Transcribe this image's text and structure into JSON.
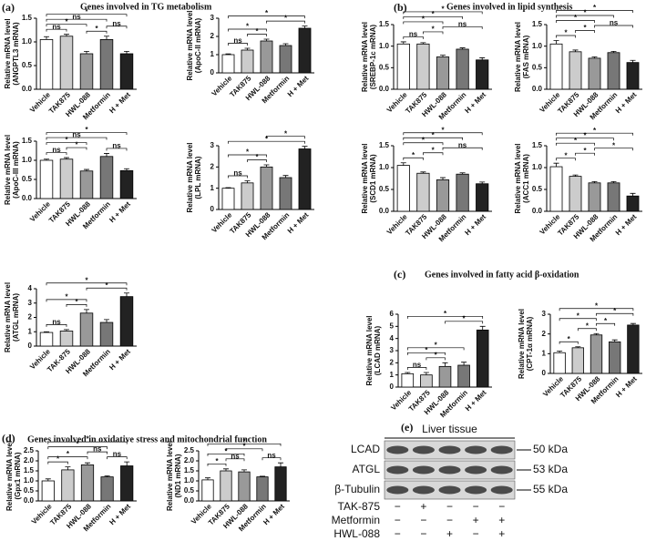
{
  "panels": [
    {
      "label": "(a)",
      "title": "Genes involved in TG metabolism"
    },
    {
      "label": "(b)",
      "title": "Genes involved in lipid synthesis"
    },
    {
      "label": "(c)",
      "title": "Genes involved in fatty acid β-oxidation"
    },
    {
      "label": "(d)",
      "title": "Genes involved in oxidative stress and mitochondrial function"
    },
    {
      "label": "(e)"
    }
  ],
  "chart_data": [
    {
      "type": "bar",
      "ylabel": [
        "Relative mRNA level",
        "(ANGPTL3 mRNA)"
      ],
      "categories": [
        "Vehicle",
        "TAK875",
        "HWL-088",
        "Metformin",
        "H + Met"
      ],
      "values": [
        1.05,
        1.12,
        0.75,
        1.05,
        0.75
      ],
      "errors": [
        0.06,
        0.04,
        0.05,
        0.07,
        0.05
      ],
      "colors": [
        "#ffffff",
        "#cccccc",
        "#999999",
        "#777777",
        "#222222"
      ],
      "ylim": [
        0,
        1.5
      ],
      "yticks": [
        {
          "value": 0,
          "label": "0.0"
        },
        {
          "value": 0.5,
          "label": "0.5"
        },
        {
          "value": 1,
          "label": "1.0"
        },
        {
          "value": 1.5,
          "label": "1.5"
        }
      ],
      "brackets": [
        {
          "from": 0,
          "to": 1,
          "label": "ns"
        },
        {
          "from": 2,
          "to": 3,
          "label": "*"
        },
        {
          "from": 3,
          "to": 4,
          "label": "ns"
        },
        {
          "from": 0,
          "to": 2,
          "label": "*"
        },
        {
          "from": 0,
          "to": 3,
          "label": "ns"
        },
        {
          "from": 0,
          "to": 4,
          "label": "*"
        }
      ]
    },
    {
      "type": "bar",
      "ylabel": [
        "Relative mRNA level",
        "(ApoC-II mRNA)"
      ],
      "categories": [
        "Vehicle",
        "TAK875",
        "HWL-088",
        "Metformin",
        "H + Met"
      ],
      "values": [
        1.0,
        1.25,
        1.75,
        1.5,
        2.45
      ],
      "errors": [
        0.04,
        0.1,
        0.1,
        0.1,
        0.12
      ],
      "colors": [
        "#ffffff",
        "#cccccc",
        "#999999",
        "#777777",
        "#222222"
      ],
      "ylim": [
        0,
        3
      ],
      "yticks": [
        0,
        1,
        2,
        3
      ],
      "brackets": [
        {
          "from": 0,
          "to": 1,
          "label": "ns"
        },
        {
          "from": 1,
          "to": 2,
          "label": "*"
        },
        {
          "from": 0,
          "to": 2,
          "label": "*"
        },
        {
          "from": 2,
          "to": 4,
          "label": "*"
        },
        {
          "from": 0,
          "to": 4,
          "label": "*"
        }
      ]
    },
    {
      "type": "bar",
      "ylabel": [
        "Relative mRNA level",
        "(ApoC-III mRNA)"
      ],
      "categories": [
        "Vehicle",
        "TAK875",
        "HWL-088",
        "Metformin",
        "H + Met"
      ],
      "values": [
        1.0,
        1.03,
        0.72,
        1.1,
        0.73
      ],
      "errors": [
        0.03,
        0.04,
        0.04,
        0.08,
        0.05
      ],
      "colors": [
        "#ffffff",
        "#cccccc",
        "#999999",
        "#777777",
        "#222222"
      ],
      "ylim": [
        0,
        1.5
      ],
      "yticks": [
        {
          "value": 0,
          "label": "0.0"
        },
        {
          "value": 0.5,
          "label": "0.5"
        },
        {
          "value": 1,
          "label": "1.0"
        },
        {
          "value": 1.5,
          "label": "1.5"
        }
      ],
      "brackets": [
        {
          "from": 0,
          "to": 1,
          "label": "ns"
        },
        {
          "from": 1,
          "to": 2,
          "label": "*"
        },
        {
          "from": 3,
          "to": 4,
          "label": "ns"
        },
        {
          "from": 0,
          "to": 2,
          "label": "*"
        },
        {
          "from": 0,
          "to": 3,
          "label": "ns"
        },
        {
          "from": 0,
          "to": 4,
          "label": "*"
        }
      ]
    },
    {
      "type": "bar",
      "ylabel": [
        "Relative mRNA level",
        "(LPL mRNA)"
      ],
      "categories": [
        "Vehicle",
        "TAK875",
        "HWL-088",
        "Metformin",
        "H + Met"
      ],
      "values": [
        1.0,
        1.25,
        2.0,
        1.5,
        2.85
      ],
      "errors": [
        0.03,
        0.1,
        0.1,
        0.1,
        0.12
      ],
      "colors": [
        "#ffffff",
        "#cccccc",
        "#999999",
        "#777777",
        "#222222"
      ],
      "ylim": [
        0,
        3
      ],
      "yticks": [
        0,
        1,
        2,
        3
      ],
      "brackets": [
        {
          "from": 0,
          "to": 1,
          "label": "ns"
        },
        {
          "from": 1,
          "to": 2,
          "label": "*"
        },
        {
          "from": 0,
          "to": 2,
          "label": "*"
        },
        {
          "from": 0,
          "to": 4,
          "label": "*"
        },
        {
          "from": 2,
          "to": 4,
          "label": "*"
        }
      ]
    },
    {
      "type": "bar",
      "ylabel": [
        "Relative mRNA level",
        "(ATGL mRNA)"
      ],
      "categories": [
        "Vehicle",
        "TAK-875",
        "HWL-088",
        "Metformin",
        "H + Met"
      ],
      "values": [
        0.95,
        1.05,
        2.3,
        1.65,
        3.45
      ],
      "errors": [
        0.05,
        0.1,
        0.25,
        0.2,
        0.25
      ],
      "colors": [
        "#ffffff",
        "#cccccc",
        "#999999",
        "#777777",
        "#222222"
      ],
      "ylim": [
        0,
        4
      ],
      "yticks": [
        0,
        1,
        2,
        3,
        4
      ],
      "brackets": [
        {
          "from": 0,
          "to": 1,
          "label": "ns"
        },
        {
          "from": 1,
          "to": 2,
          "label": "*"
        },
        {
          "from": 0,
          "to": 2,
          "label": "*"
        },
        {
          "from": 2,
          "to": 4,
          "label": "*"
        },
        {
          "from": 0,
          "to": 4,
          "label": "*"
        }
      ]
    },
    {
      "type": "bar",
      "ylabel": [
        "Relative mRNA level",
        "(SREBP-1c mRNA)"
      ],
      "categories": [
        "Vehicle",
        "TAK875",
        "HWL-088",
        "Metformin",
        "H + Met"
      ],
      "values": [
        1.05,
        1.05,
        0.75,
        0.93,
        0.68
      ],
      "errors": [
        0.05,
        0.03,
        0.04,
        0.03,
        0.05
      ],
      "colors": [
        "#ffffff",
        "#cccccc",
        "#999999",
        "#777777",
        "#222222"
      ],
      "ylim": [
        0,
        1.5
      ],
      "yticks": [
        {
          "value": 0,
          "label": "0.0"
        },
        {
          "value": 0.5,
          "label": "0.5"
        },
        {
          "value": 1,
          "label": "1.0"
        },
        {
          "value": 1.5,
          "label": "1.5"
        }
      ],
      "brackets": [
        {
          "from": 0,
          "to": 1,
          "label": "ns"
        },
        {
          "from": 1,
          "to": 2,
          "label": "*"
        },
        {
          "from": 2,
          "to": 4,
          "label": "ns"
        },
        {
          "from": 0,
          "to": 2,
          "label": "*"
        },
        {
          "from": 0,
          "to": 3,
          "label": "*"
        },
        {
          "from": 0,
          "to": 4,
          "label": "*"
        }
      ]
    },
    {
      "type": "bar",
      "ylabel": [
        "Relative mRNA level",
        "(FAS mRNA)"
      ],
      "categories": [
        "Vehicle",
        "TAK875",
        "HWL-088",
        "Metformin",
        "H + Met"
      ],
      "values": [
        1.05,
        0.87,
        0.72,
        0.85,
        0.62
      ],
      "errors": [
        0.08,
        0.04,
        0.03,
        0.03,
        0.05
      ],
      "colors": [
        "#ffffff",
        "#cccccc",
        "#999999",
        "#777777",
        "#222222"
      ],
      "ylim": [
        0,
        1.5
      ],
      "yticks": [
        {
          "value": 0,
          "label": "0.0"
        },
        {
          "value": 0.5,
          "label": "0.5"
        },
        {
          "value": 1,
          "label": "1.0"
        },
        {
          "value": 1.5,
          "label": "1.5"
        }
      ],
      "brackets": [
        {
          "from": 0,
          "to": 1,
          "label": "*"
        },
        {
          "from": 1,
          "to": 2,
          "label": "*"
        },
        {
          "from": 2,
          "to": 4,
          "label": "ns"
        },
        {
          "from": 0,
          "to": 2,
          "label": "*"
        },
        {
          "from": 0,
          "to": 3,
          "label": "*"
        },
        {
          "from": 0,
          "to": 4,
          "label": "*"
        }
      ]
    },
    {
      "type": "bar",
      "ylabel": [
        "Relative mRNA level",
        "(SCD1 mRNA)"
      ],
      "categories": [
        "Vehicle",
        "TAK875",
        "HWL-088",
        "Metformin",
        "H + Met"
      ],
      "values": [
        1.05,
        0.87,
        0.72,
        0.85,
        0.63
      ],
      "errors": [
        0.06,
        0.03,
        0.05,
        0.03,
        0.04
      ],
      "colors": [
        "#ffffff",
        "#cccccc",
        "#999999",
        "#777777",
        "#222222"
      ],
      "ylim": [
        0,
        1.5
      ],
      "yticks": [
        {
          "value": 0,
          "label": "0.0"
        },
        {
          "value": 0.5,
          "label": "0.5"
        },
        {
          "value": 1,
          "label": "1.0"
        },
        {
          "value": 1.5,
          "label": "1.5"
        }
      ],
      "brackets": [
        {
          "from": 0,
          "to": 1,
          "label": "*"
        },
        {
          "from": 1,
          "to": 2,
          "label": "*"
        },
        {
          "from": 2,
          "to": 4,
          "label": "ns"
        },
        {
          "from": 0,
          "to": 2,
          "label": "*"
        },
        {
          "from": 0,
          "to": 3,
          "label": "*"
        },
        {
          "from": 0,
          "to": 4,
          "label": "*"
        }
      ]
    },
    {
      "type": "bar",
      "ylabel": [
        "Relative mRNA level",
        "(ACC1 mRNA)"
      ],
      "categories": [
        "Vehicle",
        "TAK875",
        "HWL-088",
        "Metformin",
        "H + Met"
      ],
      "values": [
        1.02,
        0.8,
        0.65,
        0.65,
        0.35
      ],
      "errors": [
        0.08,
        0.03,
        0.03,
        0.03,
        0.06
      ],
      "colors": [
        "#ffffff",
        "#cccccc",
        "#999999",
        "#777777",
        "#222222"
      ],
      "ylim": [
        0,
        1.5
      ],
      "yticks": [
        {
          "value": 0,
          "label": "0.0"
        },
        {
          "value": 0.5,
          "label": "0.5"
        },
        {
          "value": 1,
          "label": "1.0"
        },
        {
          "value": 1.5,
          "label": "1.5"
        }
      ],
      "brackets": [
        {
          "from": 0,
          "to": 1,
          "label": "*"
        },
        {
          "from": 1,
          "to": 2,
          "label": "*"
        },
        {
          "from": 2,
          "to": 4,
          "label": "*"
        },
        {
          "from": 0,
          "to": 2,
          "label": "*"
        },
        {
          "from": 0,
          "to": 3,
          "label": "*"
        },
        {
          "from": 0,
          "to": 4,
          "label": "*"
        }
      ]
    },
    {
      "type": "bar",
      "ylabel": [
        "Relative mRNA level",
        "(LCAD mRNA)"
      ],
      "categories": [
        "Vehicle",
        "TAK875",
        "HWL-088",
        "Metformin",
        "H + Met"
      ],
      "values": [
        1.1,
        1.0,
        1.7,
        1.8,
        4.7
      ],
      "errors": [
        0.1,
        0.2,
        0.3,
        0.25,
        0.3
      ],
      "colors": [
        "#ffffff",
        "#cccccc",
        "#999999",
        "#777777",
        "#222222"
      ],
      "ylim": [
        0,
        6
      ],
      "yticks": [
        0,
        1,
        2,
        3,
        4,
        5,
        6
      ],
      "brackets": [
        {
          "from": 0,
          "to": 1,
          "label": "ns"
        },
        {
          "from": 1,
          "to": 2,
          "label": "*"
        },
        {
          "from": 0,
          "to": 2,
          "label": "*"
        },
        {
          "from": 0,
          "to": 3,
          "label": "*"
        },
        {
          "from": 2,
          "to": 4,
          "label": "*"
        },
        {
          "from": 0,
          "to": 4,
          "label": "*"
        }
      ]
    },
    {
      "type": "bar",
      "ylabel": [
        "Relative mRNA level",
        "(CPT-1α mRNA)"
      ],
      "categories": [
        "Vehicle",
        "TAK875",
        "HWL-088",
        "Metformin",
        "H + Met"
      ],
      "values": [
        1.05,
        1.3,
        1.95,
        1.6,
        2.45
      ],
      "errors": [
        0.08,
        0.05,
        0.07,
        0.1,
        0.08
      ],
      "colors": [
        "#ffffff",
        "#cccccc",
        "#999999",
        "#777777",
        "#222222"
      ],
      "ylim": [
        0,
        3
      ],
      "yticks": [
        0,
        1,
        2,
        3
      ],
      "brackets": [
        {
          "from": 0,
          "to": 1,
          "label": "*"
        },
        {
          "from": 1,
          "to": 2,
          "label": "*"
        },
        {
          "from": 2,
          "to": 3,
          "label": "*"
        },
        {
          "from": 0,
          "to": 2,
          "label": "*"
        },
        {
          "from": 2,
          "to": 4,
          "label": "*"
        },
        {
          "from": 0,
          "to": 4,
          "label": "*"
        }
      ]
    },
    {
      "type": "bar",
      "ylabel": [
        "Relative mRNA level",
        "(Gpx1 mRNA)"
      ],
      "categories": [
        "Vehicle",
        "TAK875",
        "HWL-088",
        "Metformin",
        "H + Met"
      ],
      "values": [
        1.0,
        1.55,
        1.8,
        1.2,
        1.75
      ],
      "errors": [
        0.1,
        0.15,
        0.1,
        0.05,
        0.2
      ],
      "colors": [
        "#ffffff",
        "#cccccc",
        "#999999",
        "#777777",
        "#222222"
      ],
      "ylim": [
        0,
        2.5
      ],
      "yticks": [
        {
          "value": 0,
          "label": "0.0"
        },
        {
          "value": 0.5,
          "label": "0.5"
        },
        {
          "value": 1,
          "label": "1.0"
        },
        {
          "value": 1.5,
          "label": "1.5"
        },
        {
          "value": 2,
          "label": "2.0"
        },
        {
          "value": 2.5,
          "label": "2.5"
        }
      ],
      "brackets": [
        {
          "from": 0,
          "to": 1,
          "label": "*"
        },
        {
          "from": 3,
          "to": 4,
          "label": "ns"
        },
        {
          "from": 0,
          "to": 2,
          "label": "*"
        },
        {
          "from": 2,
          "to": 3,
          "label": "ns"
        },
        {
          "from": 0,
          "to": 3,
          "label": "*"
        },
        {
          "from": 0,
          "to": 4,
          "label": "*"
        }
      ]
    },
    {
      "type": "bar",
      "ylabel": [
        "Relative mRNA level",
        "(ND1 mRNA)"
      ],
      "categories": [
        "Vehicle",
        "TAK875",
        "HWL-088",
        "Metformin",
        "H + Met"
      ],
      "values": [
        1.05,
        1.5,
        1.45,
        1.2,
        1.7
      ],
      "errors": [
        0.1,
        0.1,
        0.1,
        0.03,
        0.2
      ],
      "colors": [
        "#ffffff",
        "#cccccc",
        "#999999",
        "#777777",
        "#222222"
      ],
      "ylim": [
        0,
        2.5
      ],
      "yticks": [
        {
          "value": 0,
          "label": "0.0"
        },
        {
          "value": 0.5,
          "label": "0.5"
        },
        {
          "value": 1,
          "label": "1.0"
        },
        {
          "value": 1.5,
          "label": "1.5"
        },
        {
          "value": 2,
          "label": "2.0"
        },
        {
          "value": 2.5,
          "label": "2.5"
        }
      ],
      "brackets": [
        {
          "from": 0,
          "to": 1,
          "label": "*"
        },
        {
          "from": 1,
          "to": 2,
          "label": "ns"
        },
        {
          "from": 3,
          "to": 4,
          "label": "ns"
        },
        {
          "from": 0,
          "to": 2,
          "label": "*"
        },
        {
          "from": 1,
          "to": 3,
          "label": "*"
        },
        {
          "from": 0,
          "to": 4,
          "label": "*"
        }
      ]
    }
  ],
  "blot": {
    "header": "Liver tissue",
    "rows": [
      {
        "label": "LCAD",
        "size": "50 kDa"
      },
      {
        "label": "ATGL",
        "size": "53 kDa"
      },
      {
        "label": "β-Tubulin",
        "size": "55 kDa"
      }
    ],
    "conditions": [
      {
        "label": "TAK-875",
        "signs": [
          "−",
          "+",
          "−",
          "−",
          "−"
        ]
      },
      {
        "label": "Metformin",
        "signs": [
          "−",
          "−",
          "−",
          "+",
          "+"
        ]
      },
      {
        "label": "HWL-088",
        "signs": [
          "−",
          "−",
          "+",
          "−",
          "+"
        ]
      }
    ]
  }
}
